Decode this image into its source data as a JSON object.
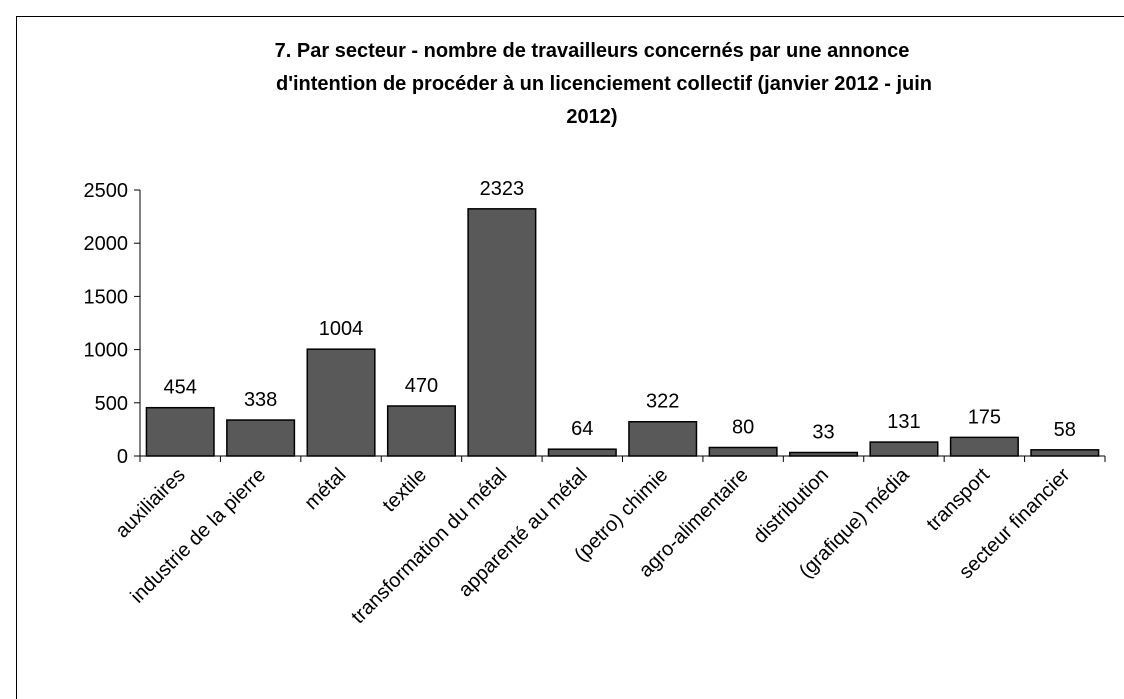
{
  "chart_data": {
    "type": "bar",
    "title": [
      "7. Par secteur - nombre de travailleurs  concernés par une annonce",
      "d'intention de procéder à un licenciement  collectif (janvier 2012 - juin",
      "2012)"
    ],
    "categories": [
      "auxiliaires",
      "industrie de la pierre",
      "métal",
      "textile",
      "transformation du métal",
      "apparenté au métal",
      "(petro) chimie",
      "agro-alimentaire",
      "distribution",
      "(grafique) média",
      "transport",
      "secteur financier"
    ],
    "values": [
      454,
      338,
      1004,
      470,
      2323,
      64,
      322,
      80,
      33,
      131,
      175,
      58
    ],
    "color": "#595959",
    "ylim": [
      0,
      2500
    ],
    "yticks": [
      0,
      500,
      1000,
      1500,
      2000,
      2500
    ],
    "grid": false
  }
}
